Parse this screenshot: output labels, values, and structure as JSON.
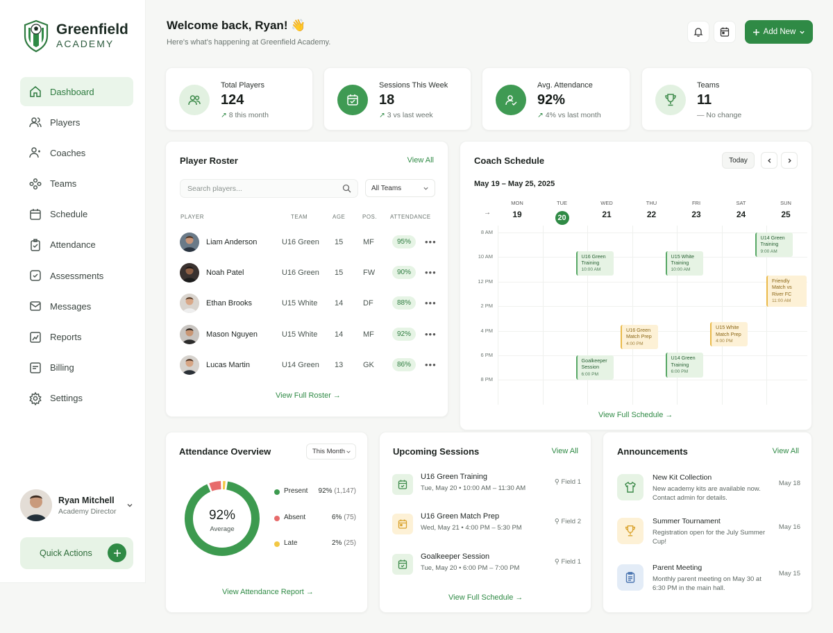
{
  "brand": {
    "name": "Greenfield",
    "sub": "ACADEMY"
  },
  "nav": [
    {
      "label": "Dashboard",
      "icon": "home-icon",
      "active": true
    },
    {
      "label": "Players",
      "icon": "users-icon"
    },
    {
      "label": "Coaches",
      "icon": "coach-icon"
    },
    {
      "label": "Teams",
      "icon": "teams-icon"
    },
    {
      "label": "Schedule",
      "icon": "calendar-icon"
    },
    {
      "label": "Attendance",
      "icon": "attendance-icon"
    },
    {
      "label": "Assessments",
      "icon": "assessment-icon"
    },
    {
      "label": "Messages",
      "icon": "message-icon"
    },
    {
      "label": "Reports",
      "icon": "chart-icon"
    },
    {
      "label": "Billing",
      "icon": "billing-icon"
    },
    {
      "label": "Settings",
      "icon": "gear-icon"
    }
  ],
  "user": {
    "name": "Ryan Mitchell",
    "role": "Academy Director"
  },
  "quick_actions": "Quick Actions",
  "header": {
    "title": "Welcome back, Ryan! 👋",
    "subtitle": "Here's what's happening at Greenfield Academy.",
    "add_new": "Add New"
  },
  "stats": [
    {
      "label": "Total Players",
      "value": "124",
      "change": "8 this month",
      "trend": "up"
    },
    {
      "label": "Sessions This Week",
      "value": "18",
      "change": "3 vs last week",
      "trend": "up"
    },
    {
      "label": "Avg. Attendance",
      "value": "92%",
      "change": "4% vs last month",
      "trend": "up"
    },
    {
      "label": "Teams",
      "value": "11",
      "change": "No change",
      "trend": "flat"
    }
  ],
  "roster": {
    "title": "Player Roster",
    "view_all": "View All",
    "search_placeholder": "Search players...",
    "filter": "All Teams",
    "columns": [
      "PLAYER",
      "TEAM",
      "AGE",
      "POS.",
      "ATTENDANCE"
    ],
    "rows": [
      {
        "name": "Liam Anderson",
        "team": "U16 Green",
        "age": "15",
        "pos": "MF",
        "att": "95%"
      },
      {
        "name": "Noah Patel",
        "team": "U16 Green",
        "age": "15",
        "pos": "FW",
        "att": "90%"
      },
      {
        "name": "Ethan Brooks",
        "team": "U15 White",
        "age": "14",
        "pos": "DF",
        "att": "88%"
      },
      {
        "name": "Mason Nguyen",
        "team": "U15 White",
        "age": "14",
        "pos": "MF",
        "att": "92%"
      },
      {
        "name": "Lucas Martin",
        "team": "U14 Green",
        "age": "13",
        "pos": "GK",
        "att": "86%"
      }
    ],
    "footer": "View Full Roster →"
  },
  "schedule": {
    "title": "Coach Schedule",
    "today": "Today",
    "range": "May 19 – May 25, 2025",
    "days": [
      {
        "name": "MON",
        "date": "19"
      },
      {
        "name": "TUE",
        "date": "20",
        "today": true
      },
      {
        "name": "WED",
        "date": "21"
      },
      {
        "name": "THU",
        "date": "22"
      },
      {
        "name": "FRI",
        "date": "23"
      },
      {
        "name": "SAT",
        "date": "24"
      },
      {
        "name": "SUN",
        "date": "25"
      }
    ],
    "times": [
      "8 AM",
      "10 AM",
      "12 PM",
      "2 PM",
      "4 PM",
      "6 PM",
      "8 PM"
    ],
    "events": [
      {
        "day": 1,
        "start": 9.5,
        "title": "U16 Green Training",
        "time": "10:00 AM",
        "color": "green"
      },
      {
        "day": 3,
        "start": 9.5,
        "title": "U15 White Training",
        "time": "10:00 AM",
        "color": "green"
      },
      {
        "day": 5,
        "start": 8.0,
        "title": "U14 Green Training",
        "time": "9:00 AM",
        "color": "green"
      },
      {
        "day": 6,
        "start": 11.5,
        "title": "Friendly Match vs River FC",
        "time": "11:00 AM",
        "color": "yellow"
      },
      {
        "day": 2,
        "start": 15.5,
        "title": "U16 Green Match Prep",
        "time": "4:00 PM",
        "color": "yellow"
      },
      {
        "day": 4,
        "start": 15.3,
        "title": "U15 White Match Prep",
        "time": "4:00 PM",
        "color": "yellow"
      },
      {
        "day": 1,
        "start": 18.0,
        "title": "Goalkeeper Session",
        "time": "6:00 PM",
        "color": "green"
      },
      {
        "day": 3,
        "start": 17.8,
        "title": "U14 Green Training",
        "time": "6:00 PM",
        "color": "green"
      }
    ],
    "footer": "View Full Schedule →"
  },
  "attendance": {
    "title": "Attendance Overview",
    "period": "This Month",
    "center_value": "92%",
    "center_label": "Average",
    "items": [
      {
        "label": "Present",
        "pct": "92%",
        "count": "(1,147)",
        "value": 1147,
        "color": "#3d9a4f"
      },
      {
        "label": "Absent",
        "pct": "6%",
        "count": "(75)",
        "value": 75,
        "color": "#e76b6b"
      },
      {
        "label": "Late",
        "pct": "2%",
        "count": "(25)",
        "value": 25,
        "color": "#f2c744"
      }
    ],
    "footer": "View Attendance Report →"
  },
  "sessions": {
    "title": "Upcoming Sessions",
    "view_all": "View All",
    "items": [
      {
        "title": "U16 Green Training",
        "when": "Tue, May 20 • 10:00 AM – 11:30 AM",
        "field": "Field 1",
        "color": "green"
      },
      {
        "title": "U16 Green Match Prep",
        "when": "Wed, May 21 • 4:00 PM – 5:30 PM",
        "field": "Field 2",
        "color": "yellow"
      },
      {
        "title": "Goalkeeper Session",
        "when": "Tue, May 20 • 6:00 PM – 7:00 PM",
        "field": "Field 1",
        "color": "green"
      }
    ],
    "footer": "View Full Schedule →"
  },
  "announcements": {
    "title": "Announcements",
    "view_all": "View All",
    "items": [
      {
        "title": "New Kit Collection",
        "text": "New academy kits are available now. Contact admin for details.",
        "date": "May 18",
        "icon": "shirt-icon",
        "color": "green"
      },
      {
        "title": "Summer Tournament",
        "text": "Registration open for the July Summer Cup!",
        "date": "May 16",
        "icon": "trophy-icon",
        "color": "yellow"
      },
      {
        "title": "Parent Meeting",
        "text": "Monthly parent meeting on May 30 at 6:30 PM in the main hall.",
        "date": "May 15",
        "icon": "clipboard-icon",
        "color": "blue"
      }
    ]
  }
}
